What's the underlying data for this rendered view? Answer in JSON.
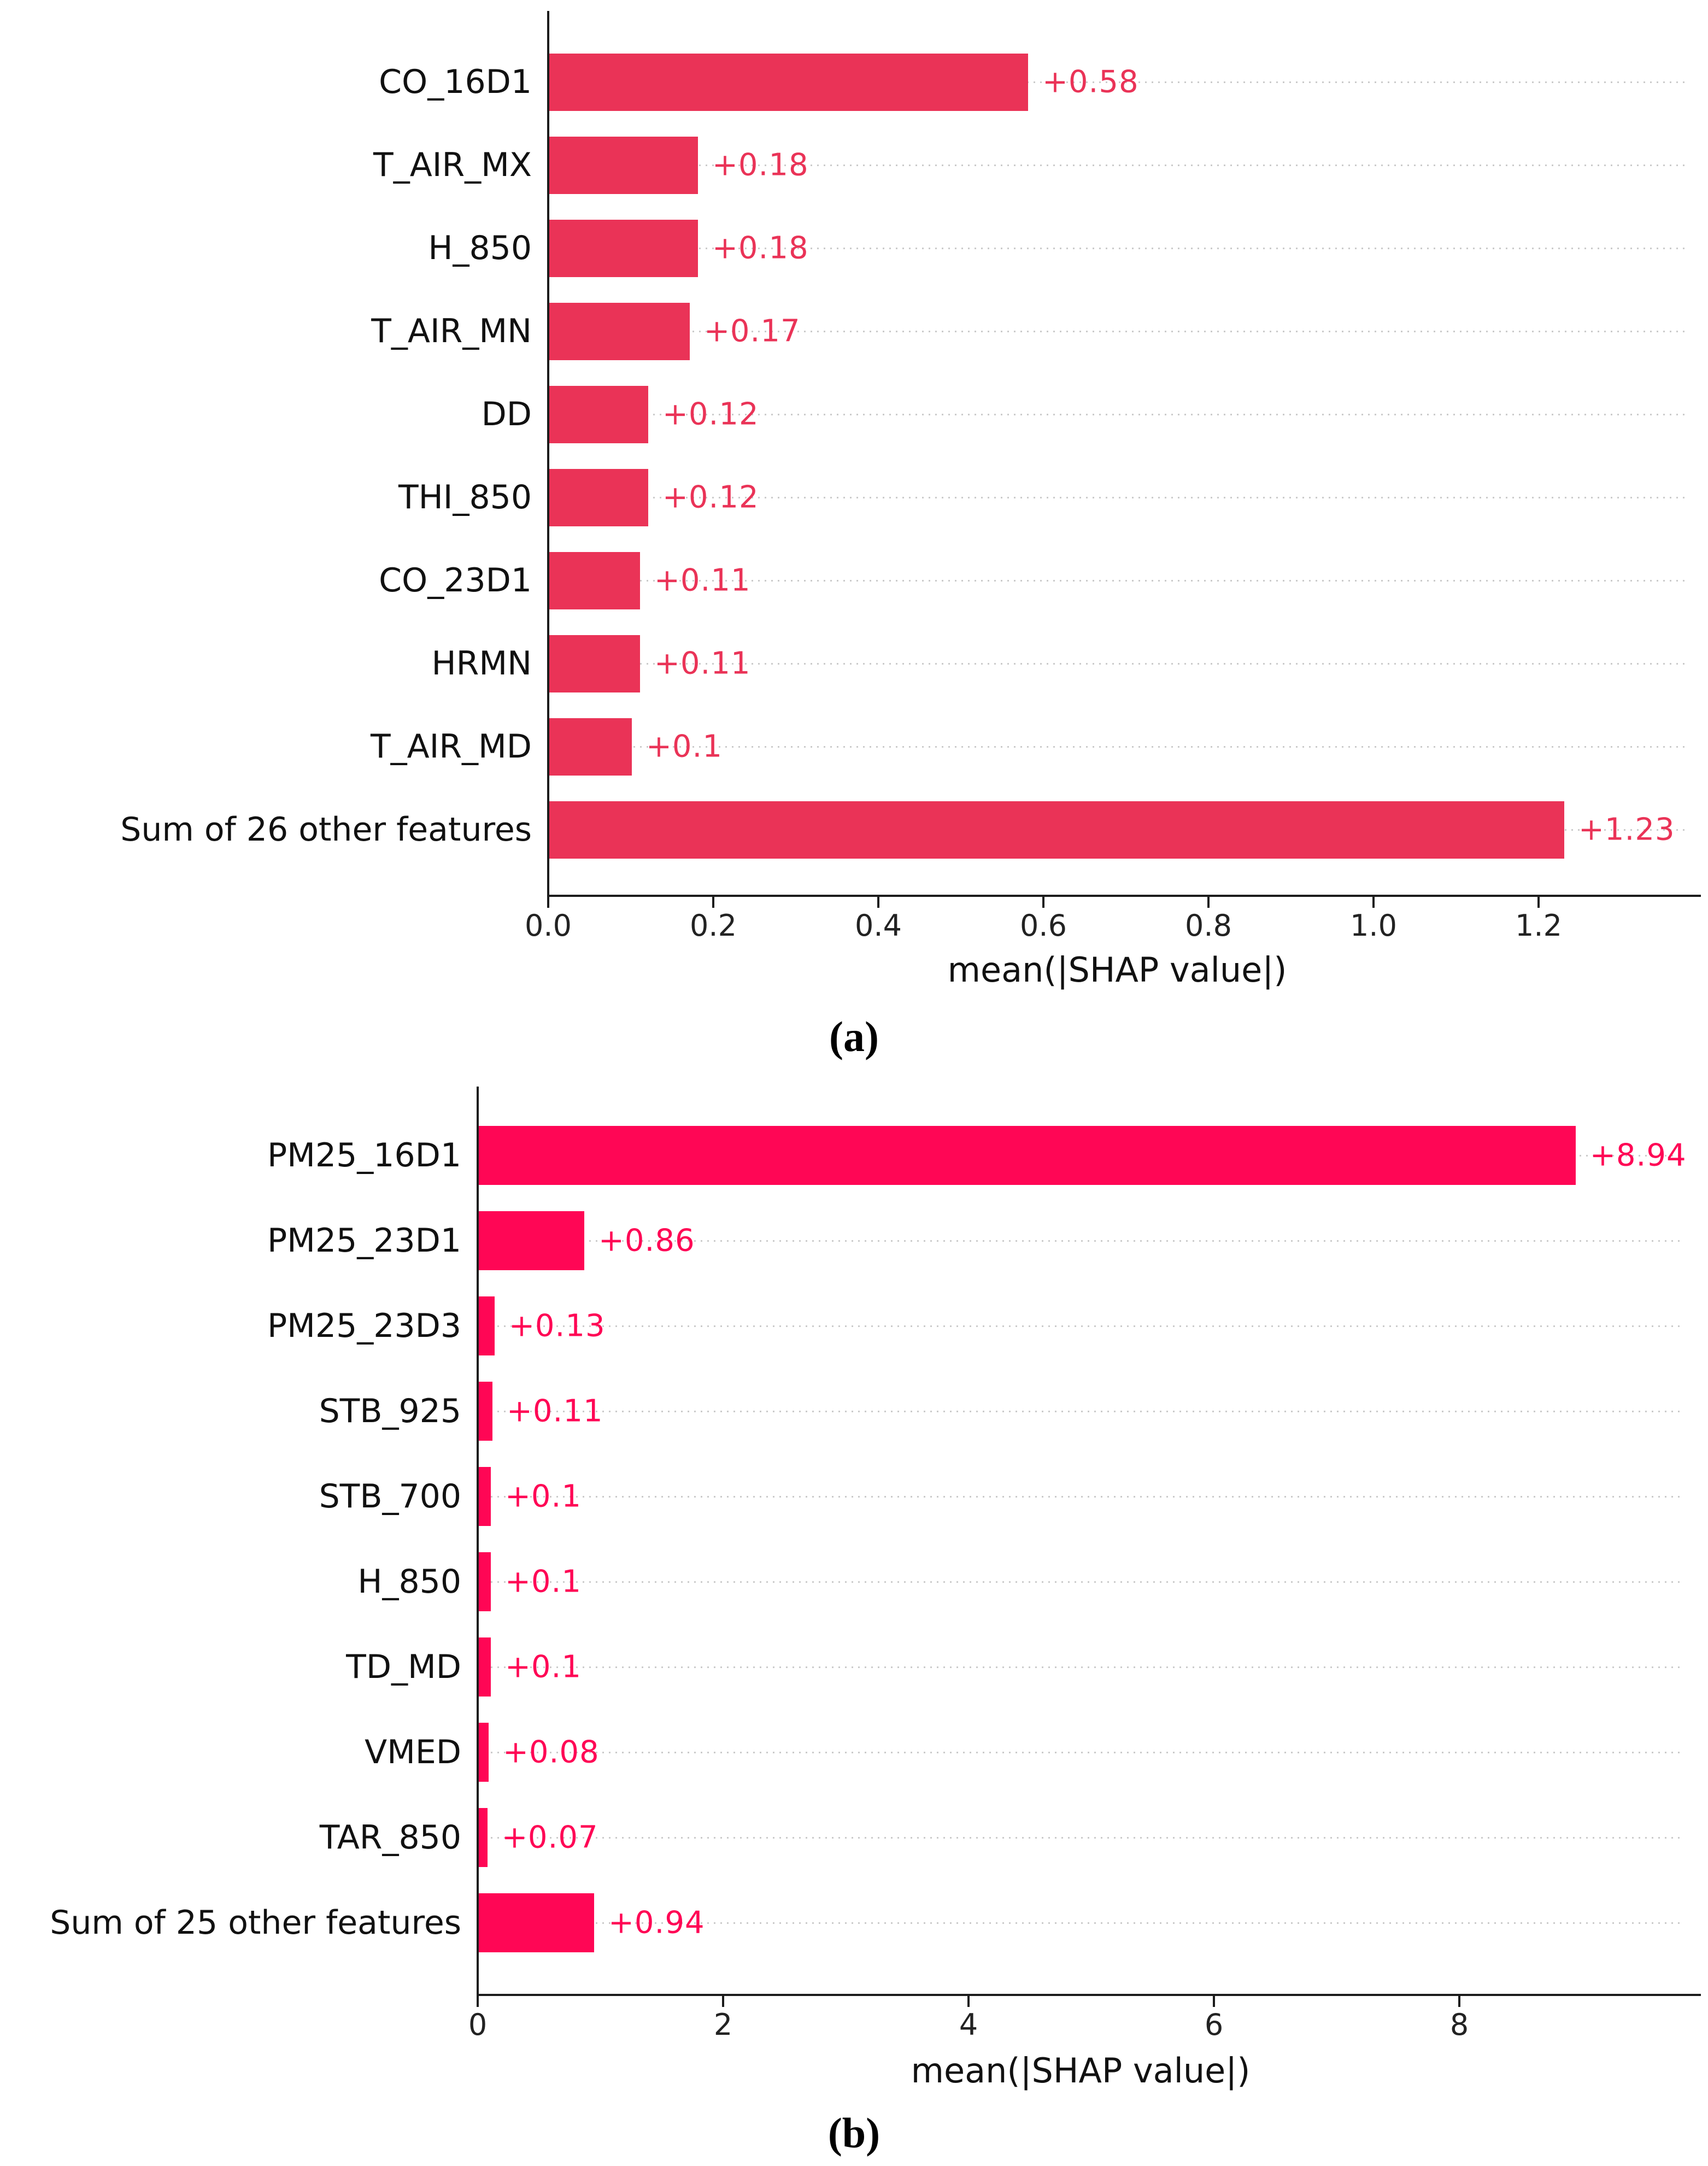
{
  "figure": {
    "background": "#ffffff",
    "panel_count": 2,
    "description": "Two horizontal SHAP feature-importance bar charts stacked vertically"
  },
  "chart_data": [
    {
      "type": "bar",
      "orientation": "horizontal",
      "panel": "a",
      "caption": "(a)",
      "title": "",
      "xlabel": "mean(|SHAP value|)",
      "ylabel": "",
      "categories": [
        "CO_16D1",
        "T_AIR_MX",
        "H_850",
        "T_AIR_MN",
        "DD",
        "THI_850",
        "CO_23D1",
        "HRMN",
        "T_AIR_MD",
        "Sum of 26 other features"
      ],
      "values": [
        0.58,
        0.18,
        0.18,
        0.17,
        0.12,
        0.12,
        0.11,
        0.11,
        0.1,
        1.23
      ],
      "value_labels": [
        "+0.58",
        "+0.18",
        "+0.18",
        "+0.17",
        "+0.12",
        "+0.12",
        "+0.11",
        "+0.11",
        "+0.1",
        "+1.23"
      ],
      "x_tick_labels": [
        "0.0",
        "0.2",
        "0.4",
        "0.6",
        "0.8",
        "1.0",
        "1.2"
      ],
      "x_tick_values": [
        0,
        0.2,
        0.4,
        0.6,
        0.8,
        1.0,
        1.2
      ],
      "xlim": [
        0,
        1.38
      ],
      "bar_color": "#EA3357",
      "value_label_color": "#EA3357",
      "gridline_color": "#cbcbcb",
      "gridline_style": "dotted",
      "legend": "none"
    },
    {
      "type": "bar",
      "orientation": "horizontal",
      "panel": "b",
      "caption": "(b)",
      "title": "",
      "xlabel": "mean(|SHAP value|)",
      "ylabel": "",
      "categories": [
        "PM25_16D1",
        "PM25_23D1",
        "PM25_23D3",
        "STB_925",
        "STB_700",
        "H_850",
        "TD_MD",
        "VMED",
        "TAR_850",
        "Sum of 25 other features"
      ],
      "values": [
        8.94,
        0.86,
        0.13,
        0.11,
        0.1,
        0.1,
        0.1,
        0.08,
        0.07,
        0.94
      ],
      "value_labels": [
        "+8.94",
        "+0.86",
        "+0.13",
        "+0.11",
        "+0.1",
        "+0.1",
        "+0.1",
        "+0.08",
        "+0.07",
        "+0.94"
      ],
      "x_tick_labels": [
        "0",
        "2",
        "4",
        "6",
        "8"
      ],
      "x_tick_values": [
        0,
        2,
        4,
        6,
        8
      ],
      "xlim": [
        0,
        9.82
      ],
      "bar_color": "#FF0655",
      "value_label_color": "#FF0655",
      "gridline_color": "#cbcbcb",
      "gridline_style": "dotted",
      "legend": "none"
    }
  ]
}
